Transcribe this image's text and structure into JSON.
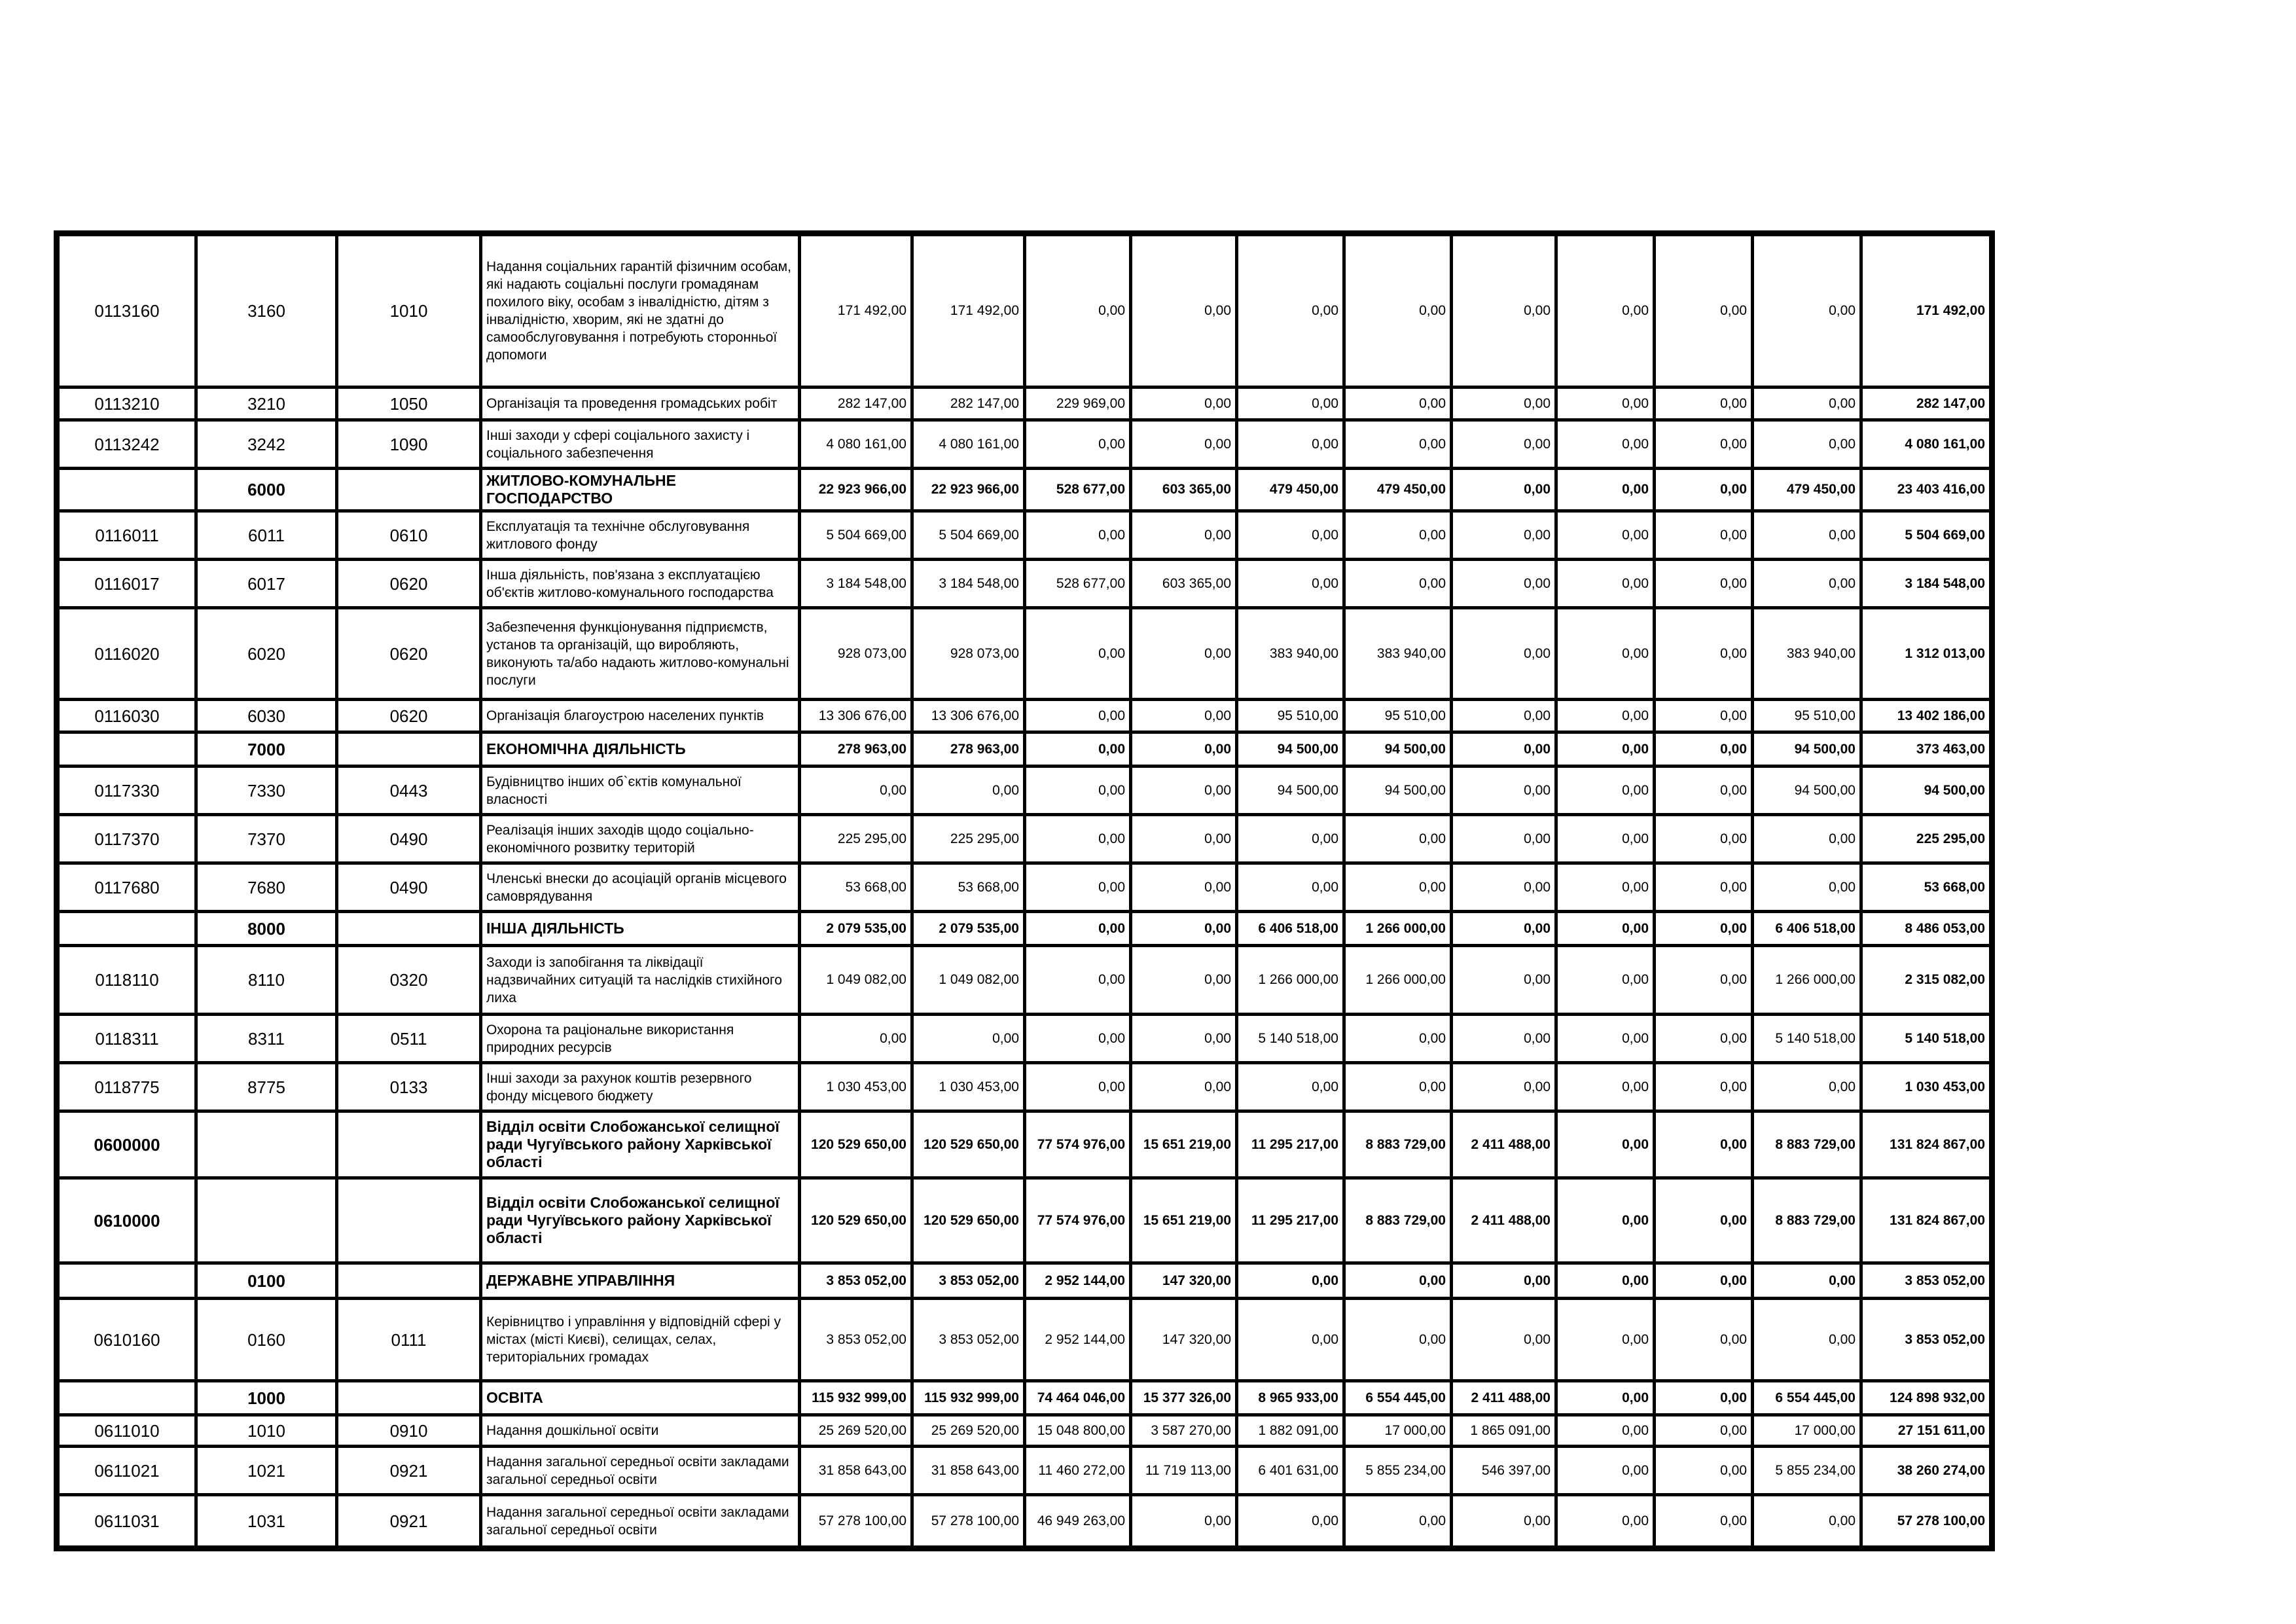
{
  "colors": {
    "border": "#000000",
    "background": "#ffffff",
    "text": "#000000"
  },
  "table": {
    "rows": [
      {
        "code_program": "0113160",
        "code_tpkvk": "3160",
        "code_fkvk": "1010",
        "name": "Надання соціальних гарантій фізичним особам, які надають соціальні послуги громадянам похилого віку, особам з інвалідністю, дітям з інвалідністю, хворим, які не здатні до самообслуговування і потребують сторонньої допомоги",
        "section": false,
        "values": [
          "171 492,00",
          "171 492,00",
          "0,00",
          "0,00",
          "0,00",
          "0,00",
          "0,00",
          "0,00",
          "0,00",
          "0,00",
          "171 492,00"
        ]
      },
      {
        "code_program": "0113210",
        "code_tpkvk": "3210",
        "code_fkvk": "1050",
        "name": "Організація та проведення громадських робіт",
        "section": false,
        "values": [
          "282 147,00",
          "282 147,00",
          "229 969,00",
          "0,00",
          "0,00",
          "0,00",
          "0,00",
          "0,00",
          "0,00",
          "0,00",
          "282 147,00"
        ]
      },
      {
        "code_program": "0113242",
        "code_tpkvk": "3242",
        "code_fkvk": "1090",
        "name": "Інші заходи у сфері соціального захисту і соціального забезпечення",
        "section": false,
        "values": [
          "4 080 161,00",
          "4 080 161,00",
          "0,00",
          "0,00",
          "0,00",
          "0,00",
          "0,00",
          "0,00",
          "0,00",
          "0,00",
          "4 080 161,00"
        ]
      },
      {
        "code_program": "",
        "code_tpkvk": "6000",
        "code_fkvk": "",
        "name": "ЖИТЛОВО-КОМУНАЛЬНЕ ГОСПОДАРСТВО",
        "section": true,
        "values": [
          "22 923 966,00",
          "22 923 966,00",
          "528 677,00",
          "603 365,00",
          "479 450,00",
          "479 450,00",
          "0,00",
          "0,00",
          "0,00",
          "479 450,00",
          "23 403 416,00"
        ]
      },
      {
        "code_program": "0116011",
        "code_tpkvk": "6011",
        "code_fkvk": "0610",
        "name": "Експлуатація та технічне обслуговування житлового фонду",
        "section": false,
        "values": [
          "5 504 669,00",
          "5 504 669,00",
          "0,00",
          "0,00",
          "0,00",
          "0,00",
          "0,00",
          "0,00",
          "0,00",
          "0,00",
          "5 504 669,00"
        ]
      },
      {
        "code_program": "0116017",
        "code_tpkvk": "6017",
        "code_fkvk": "0620",
        "name": "Інша діяльність, пов'язана з експлуатацією об'єктів житлово-комунального господарства",
        "section": false,
        "values": [
          "3 184 548,00",
          "3 184 548,00",
          "528 677,00",
          "603 365,00",
          "0,00",
          "0,00",
          "0,00",
          "0,00",
          "0,00",
          "0,00",
          "3 184 548,00"
        ]
      },
      {
        "code_program": "0116020",
        "code_tpkvk": "6020",
        "code_fkvk": "0620",
        "name": "Забезпечення функціонування підприємств, установ та організацій, що виробляють, виконують та/або надають житлово-комунальні послуги",
        "section": false,
        "values": [
          "928 073,00",
          "928 073,00",
          "0,00",
          "0,00",
          "383 940,00",
          "383 940,00",
          "0,00",
          "0,00",
          "0,00",
          "383 940,00",
          "1 312 013,00"
        ]
      },
      {
        "code_program": "0116030",
        "code_tpkvk": "6030",
        "code_fkvk": "0620",
        "name": "Організація благоустрою населених пунктів",
        "section": false,
        "values": [
          "13 306 676,00",
          "13 306 676,00",
          "0,00",
          "0,00",
          "95 510,00",
          "95 510,00",
          "0,00",
          "0,00",
          "0,00",
          "95 510,00",
          "13 402 186,00"
        ]
      },
      {
        "code_program": "",
        "code_tpkvk": "7000",
        "code_fkvk": "",
        "name": "ЕКОНОМІЧНА ДІЯЛЬНІСТЬ",
        "section": true,
        "values": [
          "278 963,00",
          "278 963,00",
          "0,00",
          "0,00",
          "94 500,00",
          "94 500,00",
          "0,00",
          "0,00",
          "0,00",
          "94 500,00",
          "373 463,00"
        ]
      },
      {
        "code_program": "0117330",
        "code_tpkvk": "7330",
        "code_fkvk": "0443",
        "name": "Будівництво інших об`єктів комунальної власності",
        "section": false,
        "values": [
          "0,00",
          "0,00",
          "0,00",
          "0,00",
          "94 500,00",
          "94 500,00",
          "0,00",
          "0,00",
          "0,00",
          "94 500,00",
          "94 500,00"
        ]
      },
      {
        "code_program": "0117370",
        "code_tpkvk": "7370",
        "code_fkvk": "0490",
        "name": "Реалізація інших заходів щодо соціально-економічного розвитку територій",
        "section": false,
        "values": [
          "225 295,00",
          "225 295,00",
          "0,00",
          "0,00",
          "0,00",
          "0,00",
          "0,00",
          "0,00",
          "0,00",
          "0,00",
          "225 295,00"
        ]
      },
      {
        "code_program": "0117680",
        "code_tpkvk": "7680",
        "code_fkvk": "0490",
        "name": "Членські внески до асоціацій органів місцевого самоврядування",
        "section": false,
        "values": [
          "53 668,00",
          "53 668,00",
          "0,00",
          "0,00",
          "0,00",
          "0,00",
          "0,00",
          "0,00",
          "0,00",
          "0,00",
          "53 668,00"
        ]
      },
      {
        "code_program": "",
        "code_tpkvk": "8000",
        "code_fkvk": "",
        "name": "ІНША ДІЯЛЬНІСТЬ",
        "section": true,
        "values": [
          "2 079 535,00",
          "2 079 535,00",
          "0,00",
          "0,00",
          "6 406 518,00",
          "1 266 000,00",
          "0,00",
          "0,00",
          "0,00",
          "6 406 518,00",
          "8 486 053,00"
        ]
      },
      {
        "code_program": "0118110",
        "code_tpkvk": "8110",
        "code_fkvk": "0320",
        "name": "Заходи із запобігання та ліквідації надзвичайних ситуацій та наслідків стихійного лиха",
        "section": false,
        "values": [
          "1 049 082,00",
          "1 049 082,00",
          "0,00",
          "0,00",
          "1 266 000,00",
          "1 266 000,00",
          "0,00",
          "0,00",
          "0,00",
          "1 266 000,00",
          "2 315 082,00"
        ]
      },
      {
        "code_program": "0118311",
        "code_tpkvk": "8311",
        "code_fkvk": "0511",
        "name": "Охорона та раціональне використання природних ресурсів",
        "section": false,
        "values": [
          "0,00",
          "0,00",
          "0,00",
          "0,00",
          "5 140 518,00",
          "0,00",
          "0,00",
          "0,00",
          "0,00",
          "5 140 518,00",
          "5 140 518,00"
        ]
      },
      {
        "code_program": "0118775",
        "code_tpkvk": "8775",
        "code_fkvk": "0133",
        "name": "Інші заходи за рахунок коштів резервного фонду місцевого бюджету",
        "section": false,
        "values": [
          "1 030 453,00",
          "1 030 453,00",
          "0,00",
          "0,00",
          "0,00",
          "0,00",
          "0,00",
          "0,00",
          "0,00",
          "0,00",
          "1 030 453,00"
        ]
      },
      {
        "code_program": "0600000",
        "code_tpkvk": "",
        "code_fkvk": "",
        "name": "Відділ освіти Слобожанської селищної ради Чугуївського району Харківської області",
        "section": true,
        "values": [
          "120 529 650,00",
          "120 529 650,00",
          "77 574 976,00",
          "15 651 219,00",
          "11 295 217,00",
          "8 883 729,00",
          "2 411 488,00",
          "0,00",
          "0,00",
          "8 883 729,00",
          "131 824 867,00"
        ]
      },
      {
        "code_program": "0610000",
        "code_tpkvk": "",
        "code_fkvk": "",
        "name": "Відділ освіти Слобожанської селищної ради Чугуївського району Харківської області",
        "section": true,
        "values": [
          "120 529 650,00",
          "120 529 650,00",
          "77 574 976,00",
          "15 651 219,00",
          "11 295 217,00",
          "8 883 729,00",
          "2 411 488,00",
          "0,00",
          "0,00",
          "8 883 729,00",
          "131 824 867,00"
        ]
      },
      {
        "code_program": "",
        "code_tpkvk": "0100",
        "code_fkvk": "",
        "name": "ДЕРЖАВНЕ УПРАВЛІННЯ",
        "section": true,
        "values": [
          "3 853 052,00",
          "3 853 052,00",
          "2 952 144,00",
          "147 320,00",
          "0,00",
          "0,00",
          "0,00",
          "0,00",
          "0,00",
          "0,00",
          "3 853 052,00"
        ]
      },
      {
        "code_program": "0610160",
        "code_tpkvk": "0160",
        "code_fkvk": "0111",
        "name": "Керівництво і управління у відповідній сфері у містах (місті Києві), селищах, селах, територіальних громадах",
        "section": false,
        "values": [
          "3 853 052,00",
          "3 853 052,00",
          "2 952 144,00",
          "147 320,00",
          "0,00",
          "0,00",
          "0,00",
          "0,00",
          "0,00",
          "0,00",
          "3 853 052,00"
        ]
      },
      {
        "code_program": "",
        "code_tpkvk": "1000",
        "code_fkvk": "",
        "name": "ОСВІТА",
        "section": true,
        "values": [
          "115 932 999,00",
          "115 932 999,00",
          "74 464 046,00",
          "15 377 326,00",
          "8 965 933,00",
          "6 554 445,00",
          "2 411 488,00",
          "0,00",
          "0,00",
          "6 554 445,00",
          "124 898 932,00"
        ]
      },
      {
        "code_program": "0611010",
        "code_tpkvk": "1010",
        "code_fkvk": "0910",
        "name": "Надання дошкільної освіти",
        "section": false,
        "values": [
          "25 269 520,00",
          "25 269 520,00",
          "15 048 800,00",
          "3 587 270,00",
          "1 882 091,00",
          "17 000,00",
          "1 865 091,00",
          "0,00",
          "0,00",
          "17 000,00",
          "27 151 611,00"
        ]
      },
      {
        "code_program": "0611021",
        "code_tpkvk": "1021",
        "code_fkvk": "0921",
        "name": "Надання загальної середньої освіти закладами загальної середньої освіти",
        "section": false,
        "values": [
          "31 858 643,00",
          "31 858 643,00",
          "11 460 272,00",
          "11 719 113,00",
          "6 401 631,00",
          "5 855 234,00",
          "546 397,00",
          "0,00",
          "0,00",
          "5 855 234,00",
          "38 260 274,00"
        ]
      },
      {
        "code_program": "0611031",
        "code_tpkvk": "1031",
        "code_fkvk": "0921",
        "name": "Надання загальної середньої освіти закладами загальної середньої освіти",
        "section": false,
        "values": [
          "57 278 100,00",
          "57 278 100,00",
          "46 949 263,00",
          "0,00",
          "0,00",
          "0,00",
          "0,00",
          "0,00",
          "0,00",
          "0,00",
          "57 278 100,00"
        ]
      }
    ]
  }
}
